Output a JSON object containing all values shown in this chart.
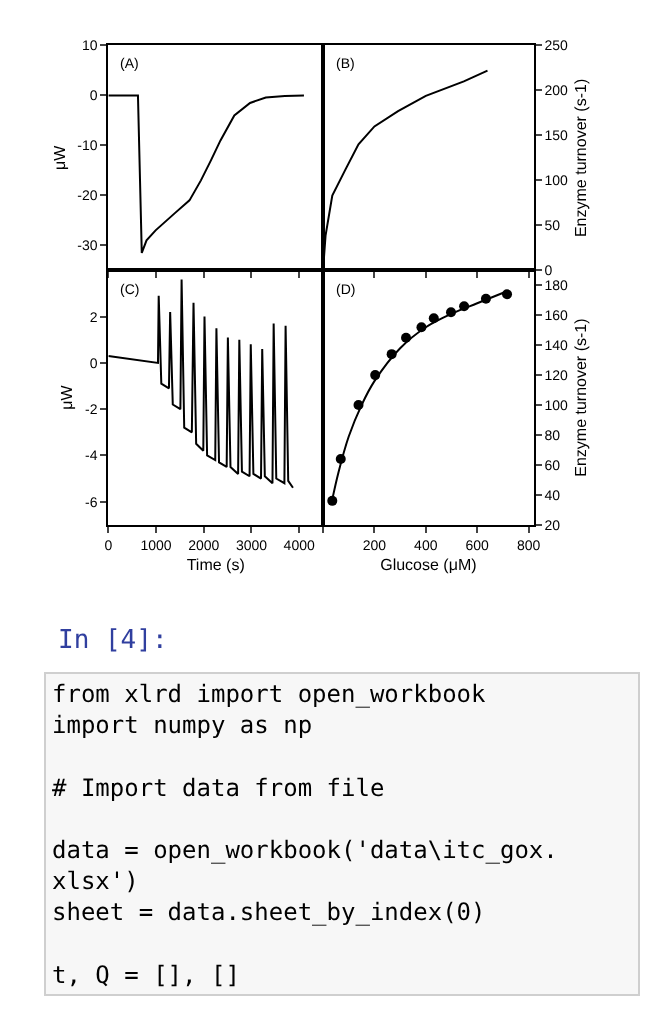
{
  "chart_data": [
    {
      "type": "line",
      "title": "(A)",
      "ylabel": "μW",
      "xlim": [
        0,
        4500
      ],
      "xticks": [
        0,
        1000,
        2000,
        3000,
        4000
      ],
      "ylim": [
        -35,
        10
      ],
      "yticks": [
        -30,
        -20,
        -10,
        0,
        10
      ],
      "tick_labels": "y",
      "grid": false,
      "marker": "none",
      "line_style": "solid",
      "series": [
        {
          "color": "#000000",
          "x": [
            0,
            620,
            700,
            800,
            990,
            1400,
            1700,
            1940,
            2150,
            2350,
            2640,
            2970,
            3300,
            3700,
            4100
          ],
          "values": [
            0,
            0,
            -31.5,
            -29,
            -27,
            -23.5,
            -21,
            -17,
            -13,
            -9,
            -4,
            -1.5,
            -0.4,
            -0.1,
            0
          ]
        }
      ]
    },
    {
      "type": "line",
      "title": "(B)",
      "y2label": "Enzyme turnover (s-1)",
      "xlim": [
        0,
        820
      ],
      "xticks": [
        {
          "value": 0,
          "label": null
        },
        200,
        400,
        600,
        800
      ],
      "y2lim": [
        0,
        250
      ],
      "y2ticks": [
        0,
        50,
        100,
        150,
        200,
        250
      ],
      "tick_labels": "y",
      "grid": false,
      "marker": "none",
      "line_style": "solid",
      "series": [
        {
          "color": "#000000",
          "axis": "y2",
          "x": [
            0,
            10,
            36,
            87,
            138,
            200,
            292,
            400,
            548,
            640
          ],
          "values": [
            0,
            39,
            83,
            112,
            140,
            160,
            177,
            194,
            210,
            222
          ]
        }
      ]
    },
    {
      "type": "line",
      "title": "(C)",
      "xlabel": "Time (s)",
      "ylabel": "μW",
      "xlim": [
        0,
        4500
      ],
      "xticks": [
        0,
        1000,
        2000,
        3000,
        4000
      ],
      "ylim": [
        -7,
        4
      ],
      "yticks": [
        -6,
        -4,
        -2,
        0,
        2
      ],
      "grid": false,
      "marker": "none",
      "line_style": "solid",
      "series": [
        {
          "color": "#000000",
          "x": [
            0,
            1040,
            1055,
            1110,
            1270,
            1295,
            1350,
            1510,
            1535,
            1590,
            1750,
            1785,
            1840,
            1990,
            2015,
            2070,
            2240,
            2265,
            2320,
            2480,
            2505,
            2560,
            2720,
            2745,
            2800,
            2960,
            2985,
            3040,
            3200,
            3225,
            3280,
            3440,
            3465,
            3520,
            3690,
            3715,
            3770,
            3870
          ],
          "values": [
            0.3,
            0.0,
            2.9,
            -0.9,
            -1.1,
            2.2,
            -1.8,
            -2.0,
            3.6,
            -2.8,
            -3.0,
            2.6,
            -3.5,
            -3.8,
            2.0,
            -4.0,
            -4.2,
            1.5,
            -4.3,
            -4.5,
            1.1,
            -4.5,
            -4.8,
            1.0,
            -4.7,
            -4.9,
            0.8,
            -4.8,
            -5.0,
            0.6,
            -4.9,
            -5.2,
            1.7,
            -5.0,
            -5.2,
            1.6,
            -5.1,
            -5.4
          ]
        }
      ]
    },
    {
      "type": "scatter",
      "title": "(D)",
      "xlabel": "Glucose (μM)",
      "y2label": "Enzyme turnover (s-1)",
      "xlim": [
        0,
        820
      ],
      "xticks": [
        {
          "value": 0,
          "label": null
        },
        200,
        400,
        600,
        800
      ],
      "y2lim": [
        20,
        190
      ],
      "y2ticks": [
        20,
        40,
        60,
        80,
        100,
        120,
        140,
        160,
        180
      ],
      "grid": false,
      "marker": "circle",
      "series": [
        {
          "color": "#000000",
          "axis": "y2",
          "x": [
            36,
            69,
            138,
            203,
            267,
            323,
            383,
            431,
            498,
            549,
            634,
            716
          ],
          "values": [
            36,
            64,
            100,
            120,
            134,
            145,
            152,
            158,
            162,
            166,
            171,
            174
          ]
        },
        {
          "type": "line",
          "color": "#000000",
          "axis": "y2",
          "line_style": "solid",
          "marker": "none",
          "x": [
            36,
            60,
            100,
            150,
            200,
            300,
            400,
            500,
            600,
            716
          ],
          "values": [
            37,
            55,
            79,
            100,
            116,
            138,
            152,
            161,
            168,
            176
          ]
        }
      ]
    },
    {
      "type": "other",
      "annotations": [
        "In [4]:",
        "from xlrd import open_workbook\nimport numpy as np\n\n# Import data from file\n\ndata = open_workbook('data\\itc_gox.\nxlsx')\nsheet = data.sheet_by_index(0)\n\nt, Q = [], []"
      ]
    }
  ]
}
